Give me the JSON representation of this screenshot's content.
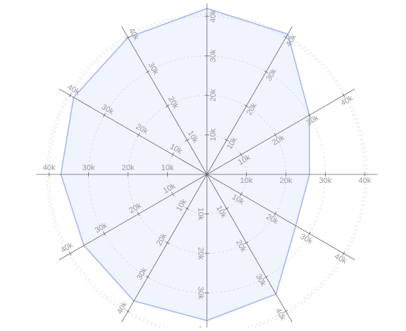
{
  "chart_data": {
    "type": "radar",
    "axes_count": 12,
    "radial_range": [
      0,
      40000
    ],
    "tick_values": [
      10000,
      20000,
      30000,
      40000
    ],
    "tick_labels": [
      "10k",
      "20k",
      "30k",
      "40k"
    ],
    "grid": true,
    "series": [
      {
        "values": [
          42000,
          41000,
          30000,
          26000,
          26000,
          35000,
          37000,
          37000,
          36000,
          37000,
          39000,
          40000
        ]
      }
    ],
    "colors": {
      "line": "#aab8f0",
      "fill": "#bfd4f6",
      "axis": "#666666",
      "grid": "#e0e0e0",
      "label": "#999999"
    }
  }
}
